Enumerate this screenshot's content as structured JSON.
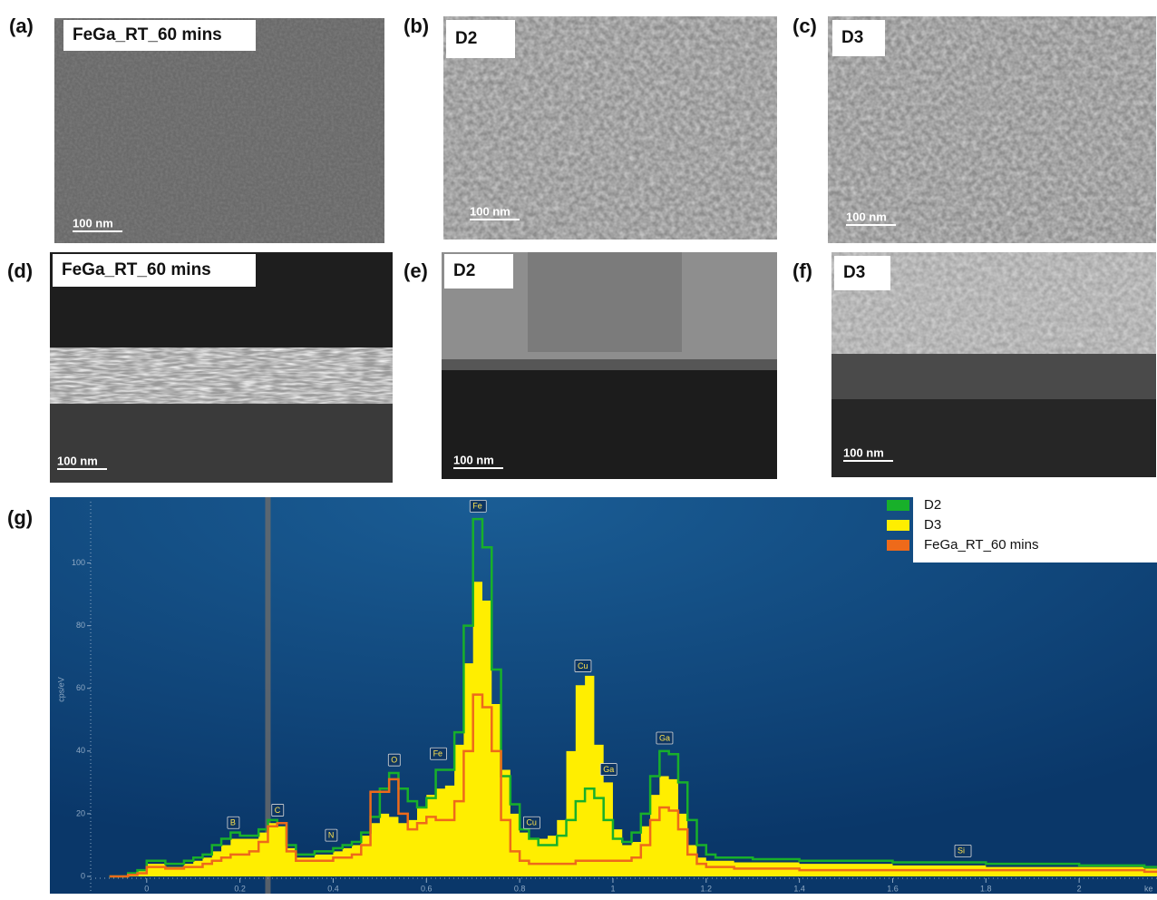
{
  "panels": [
    {
      "letter": "(a)",
      "label": "FeGa_RT_60 mins",
      "scale": "100 nm"
    },
    {
      "letter": "(b)",
      "label": "D2",
      "scale": "100 nm"
    },
    {
      "letter": "(c)",
      "label": "D3",
      "scale": "100 nm"
    },
    {
      "letter": "(d)",
      "label": "FeGa_RT_60 mins",
      "scale": "100 nm"
    },
    {
      "letter": "(e)",
      "label": "D2",
      "scale": "100 nm"
    },
    {
      "letter": "(f)",
      "label": "D3",
      "scale": "100 nm"
    }
  ],
  "chart_data": {
    "type": "step",
    "letter": "(g)",
    "y_label": "cps/eV",
    "x_label": "ke",
    "xlim": [
      -0.126,
      2.167
    ],
    "ylim": [
      -5.5,
      121
    ],
    "xticks": [
      0,
      0.2,
      0.4,
      0.6,
      0.8,
      1,
      1.2,
      1.4,
      1.6,
      1.8,
      2
    ],
    "yticks": [
      0,
      20,
      40,
      60,
      80,
      100
    ],
    "marker_x": 0.26,
    "x": [
      -0.08,
      -0.06,
      -0.04,
      -0.02,
      0,
      0.02,
      0.04,
      0.06,
      0.08,
      0.1,
      0.12,
      0.14,
      0.16,
      0.18,
      0.2,
      0.22,
      0.24,
      0.26,
      0.28,
      0.3,
      0.32,
      0.34,
      0.36,
      0.38,
      0.4,
      0.42,
      0.44,
      0.46,
      0.48,
      0.5,
      0.52,
      0.54,
      0.56,
      0.58,
      0.6,
      0.62,
      0.64,
      0.66,
      0.68,
      0.7,
      0.72,
      0.74,
      0.76,
      0.78,
      0.8,
      0.82,
      0.84,
      0.86,
      0.88,
      0.9,
      0.92,
      0.94,
      0.96,
      0.98,
      1,
      1.02,
      1.04,
      1.06,
      1.08,
      1.1,
      1.12,
      1.14,
      1.16,
      1.18,
      1.2,
      1.22,
      1.26,
      1.3,
      1.4,
      1.6,
      1.8,
      2,
      2.14
    ],
    "series": [
      {
        "name": "D2",
        "color": "#18b02a",
        "fill": false,
        "values": [
          0,
          0,
          1,
          2,
          5,
          5,
          4,
          4,
          5,
          6,
          7,
          10,
          12,
          14,
          13,
          13,
          15,
          18,
          17,
          10,
          7,
          7,
          8,
          8,
          9,
          10,
          11,
          14,
          19,
          28,
          33,
          28,
          24,
          22,
          25,
          34,
          34,
          46,
          80,
          114,
          105,
          66,
          32,
          23,
          15,
          12,
          10,
          10,
          13,
          18,
          24,
          28,
          25,
          18,
          12,
          11,
          14,
          20,
          32,
          40,
          39,
          30,
          18,
          10,
          7,
          6,
          6,
          5.5,
          5,
          4.5,
          4,
          3.5,
          3
        ]
      },
      {
        "name": "D3",
        "color": "#ffee00",
        "fill": true,
        "values": [
          0,
          0,
          1,
          2,
          4,
          4,
          3,
          3,
          4,
          5,
          6,
          8,
          10,
          12,
          12,
          12,
          14,
          17,
          16,
          9,
          6,
          6,
          7,
          7,
          8,
          9,
          10,
          13,
          17,
          20,
          19,
          17,
          18,
          22,
          26,
          28,
          29,
          42,
          68,
          94,
          88,
          55,
          34,
          20,
          14,
          12,
          12,
          13,
          18,
          40,
          61,
          64,
          42,
          30,
          15,
          10,
          11,
          16,
          26,
          32,
          31,
          20,
          10,
          6,
          5,
          5,
          4.5,
          4.5,
          4,
          3.5,
          3,
          3,
          2.5
        ]
      },
      {
        "name": "FeGa_RT_60 mins",
        "color": "#ee6a1a",
        "fill": false,
        "values": [
          0,
          0,
          0.5,
          1,
          3,
          3,
          2.5,
          2.5,
          3,
          3,
          4,
          5,
          6,
          7,
          7,
          8,
          11,
          16,
          17,
          8,
          5,
          5,
          5,
          5,
          6,
          6,
          7,
          10,
          27,
          27,
          31,
          20,
          15,
          17,
          19,
          18,
          18,
          24,
          40,
          58,
          54,
          40,
          18,
          8,
          5,
          4,
          4,
          4,
          4,
          4,
          5,
          5,
          5,
          5,
          5,
          5,
          6,
          10,
          18,
          22,
          21,
          15,
          7,
          4,
          3,
          3,
          2.5,
          2.5,
          2,
          2,
          2,
          2,
          1.5
        ]
      }
    ],
    "annotations": [
      {
        "label": "B",
        "x": 0.185,
        "y": 17
      },
      {
        "label": "C",
        "x": 0.28,
        "y": 21
      },
      {
        "label": "N",
        "x": 0.395,
        "y": 13
      },
      {
        "label": "O",
        "x": 0.53,
        "y": 37
      },
      {
        "label": "Fe",
        "x": 0.62,
        "y": 39
      },
      {
        "label": "Fe",
        "x": 0.705,
        "y": 118
      },
      {
        "label": "Cu",
        "x": 0.82,
        "y": 17
      },
      {
        "label": "Cu",
        "x": 0.93,
        "y": 67
      },
      {
        "label": "Ga",
        "x": 0.985,
        "y": 34
      },
      {
        "label": "Ga",
        "x": 1.105,
        "y": 44
      },
      {
        "label": "Si",
        "x": 1.745,
        "y": 8
      }
    ]
  }
}
